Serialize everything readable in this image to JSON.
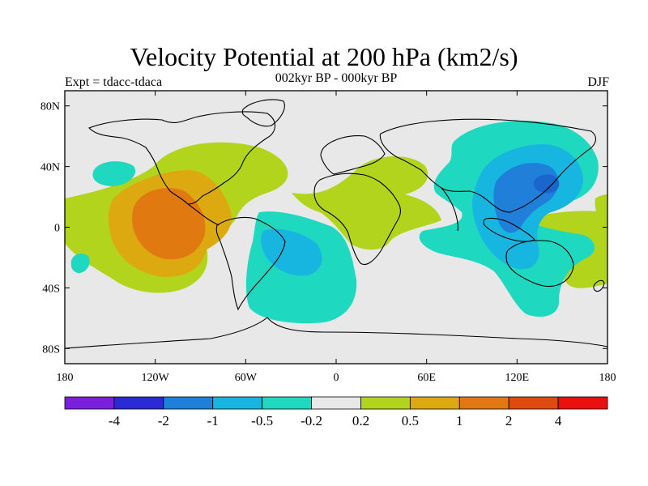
{
  "title": "Velocity Potential at 200 hPa (km2/s)",
  "subtitle": "002kyr BP - 000kyr BP",
  "left_label": "Expt = tdacc-tdaca",
  "right_label": "DJF",
  "map": {
    "projection": "cylindrical-equidistant",
    "lon_range": [
      -180,
      180
    ],
    "lat_range": [
      -90,
      90
    ],
    "background_color": "#e8e8e8",
    "lat_ticks": [
      {
        "value": 80,
        "label": "80N"
      },
      {
        "value": 40,
        "label": "40N"
      },
      {
        "value": 0,
        "label": "0"
      },
      {
        "value": -40,
        "label": "40S"
      },
      {
        "value": -80,
        "label": "80S"
      }
    ],
    "lon_ticks": [
      {
        "value": -180,
        "label": "180"
      },
      {
        "value": -120,
        "label": "120W"
      },
      {
        "value": -60,
        "label": "60W"
      },
      {
        "value": 0,
        "label": "0"
      },
      {
        "value": 60,
        "label": "60E"
      },
      {
        "value": 120,
        "label": "120E"
      },
      {
        "value": 180,
        "label": "180"
      }
    ]
  },
  "colorbar": {
    "colors": [
      "#7a1fdc",
      "#2a2ad6",
      "#1f7fd9",
      "#16b6e0",
      "#1ed8c0",
      "#e8e8e8",
      "#b2d41c",
      "#dcaa10",
      "#e07a10",
      "#e04a10",
      "#e81010"
    ],
    "labels": [
      "-4",
      "-2",
      "-1",
      "-0.5",
      "-0.2",
      "0.2",
      "0.5",
      "1",
      "2",
      "4"
    ]
  },
  "regions": [
    {
      "name": "pacific-positive-outer",
      "level": "0.2",
      "color": "#b2d41c"
    },
    {
      "name": "pacific-positive-05",
      "level": "0.5",
      "color": "#dcaa10"
    },
    {
      "name": "pacific-positive-1",
      "level": "1",
      "color": "#e07a10"
    },
    {
      "name": "africa-positive",
      "level": "0.2",
      "color": "#b2d41c"
    },
    {
      "name": "australia-positive",
      "level": "0.2",
      "color": "#b2d41c"
    },
    {
      "name": "north-pacific-negative",
      "level": "-0.2",
      "color": "#1ed8c0"
    },
    {
      "name": "south-pacific-negative",
      "level": "-0.2",
      "color": "#1ed8c0"
    },
    {
      "name": "south-atlantic-negative",
      "level": "-0.2",
      "color": "#1ed8c0"
    },
    {
      "name": "south-atlantic-negative-05",
      "level": "-0.5",
      "color": "#16b6e0"
    },
    {
      "name": "asia-negative",
      "level": "-0.2",
      "color": "#1ed8c0"
    },
    {
      "name": "asia-negative-05",
      "level": "-0.5",
      "color": "#16b6e0"
    },
    {
      "name": "asia-negative-1",
      "level": "-1",
      "color": "#1f7fd9"
    }
  ]
}
